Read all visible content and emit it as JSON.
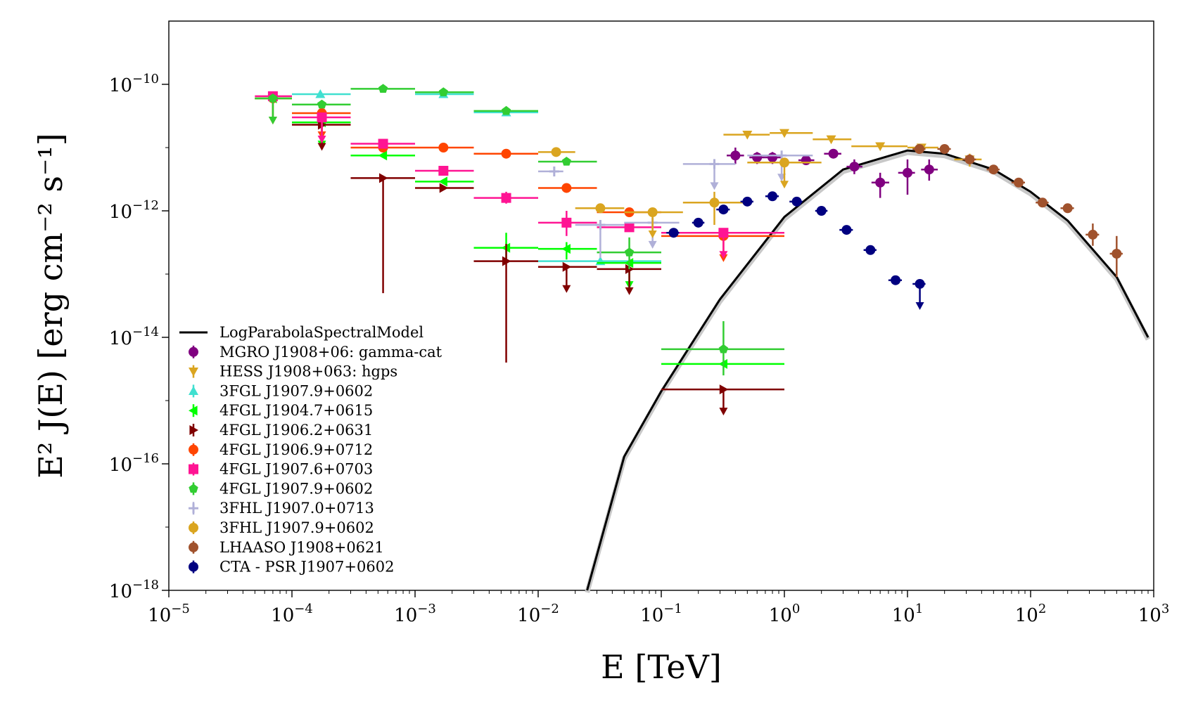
{
  "chart_data": {
    "type": "scatter",
    "xlabel": "E [TeV]",
    "ylabel": "E² J(E) [erg cm⁻² s⁻¹]",
    "xscale": "log",
    "yscale": "log",
    "xlim": [
      1e-05,
      1000
    ],
    "ylim": [
      1e-18,
      1e-09
    ],
    "legend_position": "lower-left",
    "x_ticks": [
      {
        "value": 1e-05,
        "base": "10",
        "exp": "−5"
      },
      {
        "value": 0.0001,
        "base": "10",
        "exp": "−4"
      },
      {
        "value": 0.001,
        "base": "10",
        "exp": "−3"
      },
      {
        "value": 0.01,
        "base": "10",
        "exp": "−2"
      },
      {
        "value": 0.1,
        "base": "10",
        "exp": "−1"
      },
      {
        "value": 1,
        "base": "10",
        "exp": "0"
      },
      {
        "value": 10,
        "base": "10",
        "exp": "1"
      },
      {
        "value": 100,
        "base": "10",
        "exp": "2"
      },
      {
        "value": 1000,
        "base": "10",
        "exp": "3"
      }
    ],
    "y_ticks": [
      {
        "value": 1e-18,
        "base": "10",
        "exp": "−18"
      },
      {
        "value": 1e-16,
        "base": "10",
        "exp": "−16"
      },
      {
        "value": 1e-14,
        "base": "10",
        "exp": "−14"
      },
      {
        "value": 1e-12,
        "base": "10",
        "exp": "−12"
      },
      {
        "value": 1e-10,
        "base": "10",
        "exp": "−10"
      }
    ],
    "model": {
      "name": "LogParabolaSpectralModel",
      "color": "#000000",
      "band_color": "#c8c8c8",
      "curve": [
        [
          0.025,
          1e-18
        ],
        [
          0.05,
          1.3e-16
        ],
        [
          0.1,
          1.4e-15
        ],
        [
          0.3,
          4e-14
        ],
        [
          1,
          8e-13
        ],
        [
          3,
          4.5e-12
        ],
        [
          10,
          9e-12
        ],
        [
          20,
          8e-12
        ],
        [
          50,
          4.5e-12
        ],
        [
          100,
          2e-12
        ],
        [
          200,
          7e-13
        ],
        [
          500,
          9e-14
        ],
        [
          900,
          1e-14
        ]
      ]
    },
    "series": [
      {
        "name": "MGRO J1908+06: gamma-cat",
        "color": "#800080",
        "marker": "circle",
        "points": [
          [
            0.4,
            7.5e-12,
            0.34,
            0.47,
            5.5e-12,
            1e-11,
            0
          ],
          [
            0.6,
            7e-12,
            0.52,
            0.7,
            5.5e-12,
            8.5e-12,
            0
          ],
          [
            0.8,
            7e-12,
            0.7,
            0.95,
            5.5e-12,
            8.5e-12,
            0
          ],
          [
            1.5,
            6.3e-12,
            1.3,
            1.75,
            5.3e-12,
            7.3e-12,
            0
          ],
          [
            2.5,
            8e-12,
            2.1,
            2.9,
            6.8e-12,
            9.2e-12,
            0
          ],
          [
            3.7,
            5e-12,
            3.2,
            4.3,
            3.8e-12,
            6.5e-12,
            0
          ],
          [
            6,
            2.8e-12,
            5.1,
            7.1,
            1.6e-12,
            4e-12,
            0
          ],
          [
            10,
            4e-12,
            8.4,
            11.5,
            1.8e-12,
            6.5e-12,
            0
          ],
          [
            15,
            4.5e-12,
            12.9,
            17.6,
            3e-12,
            6.5e-12,
            0
          ]
        ]
      },
      {
        "name": "HESS J1908+063: hgps",
        "color": "#daa520",
        "marker": "tri_down",
        "points": [
          [
            0.5,
            1.6e-11,
            0.32,
            0.76,
            1.6e-11,
            1.6e-11,
            0
          ],
          [
            1.0,
            1.7e-11,
            0.76,
            1.7,
            1.7e-11,
            1.7e-11,
            0
          ],
          [
            2.4,
            1.35e-11,
            1.7,
            3.5,
            1.35e-11,
            1.35e-11,
            0
          ],
          [
            6,
            1.05e-11,
            3.5,
            10,
            1.05e-11,
            1.05e-11,
            0
          ],
          [
            13,
            1e-11,
            10,
            17.8,
            8.5e-12,
            1.15e-11,
            0
          ],
          [
            32,
            6.5e-12,
            24,
            40,
            5e-12,
            8e-12,
            0
          ]
        ]
      },
      {
        "name": "3FGL J1907.9+0602",
        "color": "#40e0d0",
        "marker": "tri_up",
        "points": [
          [
            0.00017,
            7e-11,
            0.0001,
            0.0003,
            7e-11,
            7e-11,
            0
          ],
          [
            0.0017,
            7e-11,
            0.001,
            0.003,
            7e-11,
            7e-11,
            0
          ],
          [
            0.0055,
            3.6e-11,
            0.003,
            0.01,
            3.6e-11,
            3.6e-11,
            0
          ],
          [
            0.032,
            1.6e-13,
            0.01,
            0.1,
            1.6e-13,
            1.6e-13,
            0
          ]
        ]
      },
      {
        "name": "4FGL J1904.7+0615",
        "color": "#00ff00",
        "marker": "tri_left",
        "points": [
          [
            7e-05,
            6e-11,
            5e-05,
            0.0001,
            6e-11,
            6e-11,
            1
          ],
          [
            0.000175,
            2.5e-11,
            0.0001,
            0.0003,
            2.5e-11,
            2.5e-11,
            1
          ],
          [
            0.00055,
            7.5e-12,
            0.0003,
            0.001,
            7.5e-12,
            7.5e-12,
            0
          ],
          [
            0.0017,
            2.9e-12,
            0.001,
            0.003,
            2.9e-12,
            2.9e-12,
            0
          ],
          [
            0.0055,
            2.6e-13,
            0.003,
            0.01,
            1.6e-13,
            4.5e-13,
            0
          ],
          [
            0.017,
            2.5e-13,
            0.01,
            0.03,
            1.7e-13,
            3.2e-13,
            0
          ],
          [
            0.055,
            1.5e-13,
            0.03,
            0.1,
            1.5e-13,
            1.5e-13,
            1
          ],
          [
            0.32,
            3.8e-15,
            0.1,
            1,
            3.8e-15,
            3.8e-15,
            0
          ]
        ]
      },
      {
        "name": "4FGL J1906.2+0631",
        "color": "#800000",
        "marker": "tri_right",
        "points": [
          [
            0.000175,
            2.3e-11,
            0.0001,
            0.0003,
            2.3e-11,
            2.3e-11,
            1
          ],
          [
            0.00055,
            3.3e-12,
            0.0003,
            0.001,
            5e-14,
            3.3e-12,
            0
          ],
          [
            0.0017,
            2.3e-12,
            0.001,
            0.003,
            2.3e-12,
            2.3e-12,
            0
          ],
          [
            0.0055,
            1.6e-13,
            0.003,
            0.01,
            4e-15,
            3e-13,
            0
          ],
          [
            0.017,
            1.3e-13,
            0.01,
            0.03,
            1.3e-13,
            1.3e-13,
            1
          ],
          [
            0.055,
            1.2e-13,
            0.03,
            0.1,
            1.2e-13,
            1.2e-13,
            1
          ],
          [
            0.32,
            1.5e-15,
            0.1,
            1,
            1.5e-15,
            1.5e-15,
            1
          ]
        ]
      },
      {
        "name": "4FGL J1906.9+0712",
        "color": "#ff4500",
        "marker": "circle",
        "points": [
          [
            7e-05,
            6e-11,
            5e-05,
            0.0001,
            6e-11,
            6e-11,
            1
          ],
          [
            0.000175,
            3.5e-11,
            0.0001,
            0.0003,
            3.5e-11,
            3.5e-11,
            1
          ],
          [
            0.00055,
            1e-11,
            0.0003,
            0.001,
            1e-11,
            1e-11,
            0
          ],
          [
            0.0017,
            1e-11,
            0.001,
            0.003,
            1e-11,
            1e-11,
            0
          ],
          [
            0.0055,
            8e-12,
            0.003,
            0.01,
            8e-12,
            8e-12,
            0
          ],
          [
            0.017,
            2.3e-12,
            0.01,
            0.03,
            2.3e-12,
            2.3e-12,
            0
          ],
          [
            0.055,
            9.5e-13,
            0.03,
            0.1,
            9.5e-13,
            9.5e-13,
            0
          ],
          [
            0.32,
            4e-13,
            0.1,
            1,
            4e-13,
            4e-13,
            1
          ]
        ]
      },
      {
        "name": "4FGL J1907.6+0703",
        "color": "#ff1493",
        "marker": "square",
        "points": [
          [
            7e-05,
            6.5e-11,
            5e-05,
            0.0001,
            6.5e-11,
            6.5e-11,
            0
          ],
          [
            0.000175,
            3e-11,
            0.0001,
            0.0003,
            3e-11,
            3e-11,
            1
          ],
          [
            0.00055,
            1.15e-11,
            0.0003,
            0.001,
            1.15e-11,
            1.15e-11,
            0
          ],
          [
            0.0017,
            4.3e-12,
            0.001,
            0.003,
            3.6e-12,
            5e-12,
            0
          ],
          [
            0.0055,
            1.6e-12,
            0.003,
            0.01,
            1.3e-12,
            2e-12,
            0
          ],
          [
            0.017,
            6.5e-13,
            0.01,
            0.03,
            4e-13,
            1e-12,
            0
          ],
          [
            0.055,
            5.5e-13,
            0.03,
            0.1,
            5.5e-13,
            5.5e-13,
            0
          ],
          [
            0.32,
            4.5e-13,
            0.1,
            1,
            4.5e-13,
            4.5e-13,
            1
          ]
        ]
      },
      {
        "name": "4FGL J1907.9+0602",
        "color": "#32cd32",
        "marker": "pentagon",
        "points": [
          [
            7e-05,
            6e-11,
            5e-05,
            0.0001,
            6e-11,
            6e-11,
            1
          ],
          [
            0.000175,
            4.8e-11,
            0.0001,
            0.0003,
            4.8e-11,
            4.8e-11,
            0
          ],
          [
            0.00055,
            8.5e-11,
            0.0003,
            0.001,
            8.5e-11,
            8.5e-11,
            0
          ],
          [
            0.0017,
            7.5e-11,
            0.001,
            0.003,
            7.5e-11,
            7.5e-11,
            0
          ],
          [
            0.0055,
            3.8e-11,
            0.003,
            0.01,
            3.8e-11,
            3.8e-11,
            0
          ],
          [
            0.017,
            6e-12,
            0.01,
            0.03,
            6e-12,
            6e-12,
            0
          ],
          [
            0.055,
            2.2e-13,
            0.03,
            0.1,
            1.2e-13,
            3.8e-13,
            0
          ],
          [
            0.32,
            6.5e-15,
            0.1,
            1,
            2.5e-15,
            1.8e-14,
            0
          ]
        ]
      },
      {
        "name": "3FHL J1907.0+0713",
        "color": "#b0b0d8",
        "marker": "plus",
        "points": [
          [
            0.0135,
            4.2e-12,
            0.01,
            0.016,
            3.5e-12,
            5e-12,
            0
          ],
          [
            0.032,
            6e-13,
            0.02,
            0.05,
            1.8e-13,
            6e-13,
            0
          ],
          [
            0.085,
            6.5e-13,
            0.05,
            0.14,
            6.5e-13,
            6.5e-13,
            1
          ],
          [
            0.27,
            5.5e-12,
            0.15,
            0.4,
            5.5e-12,
            5.5e-12,
            1
          ],
          [
            0.95,
            7.5e-12,
            0.5,
            1.7,
            7.5e-12,
            7.5e-12,
            1
          ]
        ]
      },
      {
        "name": "3FHL J1907.9+0602",
        "color": "#daa520",
        "marker": "circle",
        "points": [
          [
            0.014,
            8.5e-12,
            0.01,
            0.02,
            8.5e-12,
            8.5e-12,
            0
          ],
          [
            0.032,
            1.1e-12,
            0.02,
            0.05,
            1.1e-12,
            1.1e-12,
            0
          ],
          [
            0.085,
            9.5e-13,
            0.05,
            0.15,
            9.5e-13,
            9.5e-13,
            1
          ],
          [
            0.27,
            1.35e-12,
            0.15,
            0.5,
            6e-13,
            2e-12,
            0
          ],
          [
            1.0,
            5.8e-12,
            0.5,
            2,
            5.8e-12,
            5.8e-12,
            1
          ]
        ]
      },
      {
        "name": "LHAASO J1908+0621",
        "color": "#a0522d",
        "marker": "circle",
        "points": [
          [
            12.5,
            9.5e-12,
            11,
            14,
            9.5e-12,
            9.5e-12,
            0
          ],
          [
            20,
            9.5e-12,
            17.5,
            22.5,
            9.5e-12,
            9.5e-12,
            0
          ],
          [
            32,
            6.5e-12,
            28,
            36,
            6.5e-12,
            6.5e-12,
            0
          ],
          [
            50,
            4.5e-12,
            44,
            56,
            4.5e-12,
            4.5e-12,
            0
          ],
          [
            80,
            2.8e-12,
            70,
            90,
            2.8e-12,
            2.8e-12,
            0
          ],
          [
            125,
            1.35e-12,
            110,
            140,
            1.35e-12,
            1.35e-12,
            0
          ],
          [
            200,
            1.1e-12,
            175,
            225,
            1.1e-12,
            1.1e-12,
            0
          ],
          [
            320,
            4.2e-13,
            280,
            360,
            2.8e-13,
            6.3e-13,
            0
          ],
          [
            500,
            2.1e-13,
            440,
            560,
            9e-14,
            4e-13,
            0
          ]
        ]
      },
      {
        "name": "CTA - PSR J1907+0602",
        "color": "#000080",
        "marker": "circle",
        "points": [
          [
            0.126,
            4.5e-13,
            0.11,
            0.14,
            4.5e-13,
            4.5e-13,
            0
          ],
          [
            0.2,
            6.5e-13,
            0.178,
            0.224,
            6.5e-13,
            6.5e-13,
            0
          ],
          [
            0.32,
            1.05e-12,
            0.28,
            0.36,
            1.05e-12,
            1.05e-12,
            0
          ],
          [
            0.5,
            1.4e-12,
            0.44,
            0.56,
            1.4e-12,
            1.4e-12,
            0
          ],
          [
            0.8,
            1.7e-12,
            0.7,
            0.9,
            1.7e-12,
            1.7e-12,
            0
          ],
          [
            1.26,
            1.4e-12,
            1.1,
            1.4,
            1.4e-12,
            1.4e-12,
            0
          ],
          [
            2,
            1e-12,
            1.78,
            2.24,
            1e-12,
            1e-12,
            0
          ],
          [
            3.2,
            5e-13,
            2.8,
            3.6,
            5e-13,
            5e-13,
            0
          ],
          [
            5,
            2.4e-13,
            4.4,
            5.6,
            2.4e-13,
            2.4e-13,
            0
          ],
          [
            8,
            8e-14,
            7,
            9,
            7e-14,
            9.5e-14,
            0
          ],
          [
            12.6,
            7e-14,
            11,
            14,
            7e-14,
            7e-14,
            1
          ]
        ]
      }
    ]
  }
}
